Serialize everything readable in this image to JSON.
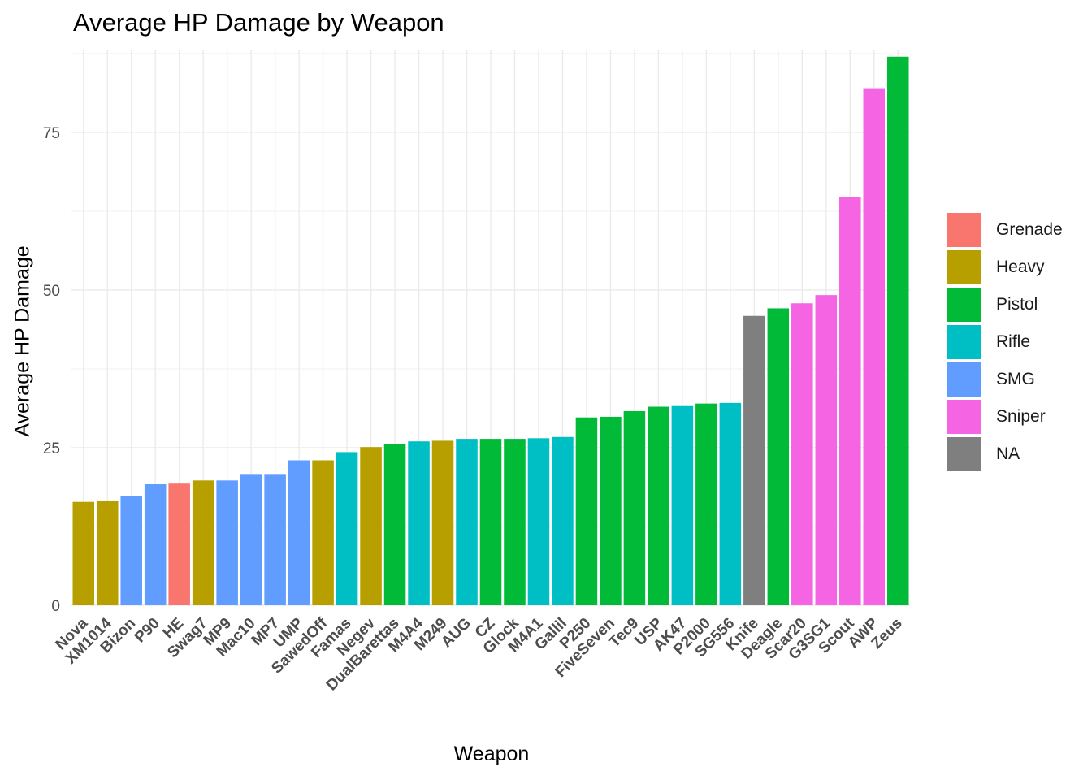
{
  "chart_data": {
    "type": "bar",
    "title": "Average HP Damage by Weapon",
    "xlabel": "Weapon",
    "ylabel": "Average HP Damage",
    "ylim": [
      0,
      88
    ],
    "yticks": [
      0,
      25,
      50,
      75
    ],
    "grid": true,
    "legend_position": "right",
    "categories": [
      "Nova",
      "XM1014",
      "Bizon",
      "P90",
      "HE",
      "Swag7",
      "MP9",
      "Mac10",
      "MP7",
      "UMP",
      "SawedOff",
      "Famas",
      "Negev",
      "DualBarettas",
      "M4A4",
      "M249",
      "AUG",
      "CZ",
      "Glock",
      "M4A1",
      "Gallil",
      "P250",
      "FiveSeven",
      "Tec9",
      "USP",
      "AK47",
      "P2000",
      "SG556",
      "Knife",
      "Deagle",
      "Scar20",
      "G3SG1",
      "Scout",
      "AWP",
      "Zeus"
    ],
    "values": [
      16.4,
      16.5,
      17.3,
      19.2,
      19.3,
      19.8,
      19.8,
      20.7,
      20.7,
      23.0,
      23.0,
      24.3,
      25.1,
      25.6,
      26.0,
      26.1,
      26.4,
      26.4,
      26.4,
      26.5,
      26.7,
      29.8,
      29.9,
      30.8,
      31.5,
      31.6,
      32.0,
      32.1,
      45.9,
      47.1,
      47.9,
      49.2,
      64.7,
      82.0,
      87.0
    ],
    "groups": [
      "Heavy",
      "Heavy",
      "SMG",
      "SMG",
      "Grenade",
      "Heavy",
      "SMG",
      "SMG",
      "SMG",
      "SMG",
      "Heavy",
      "Rifle",
      "Heavy",
      "Pistol",
      "Rifle",
      "Heavy",
      "Rifle",
      "Pistol",
      "Pistol",
      "Rifle",
      "Rifle",
      "Pistol",
      "Pistol",
      "Pistol",
      "Pistol",
      "Rifle",
      "Pistol",
      "Rifle",
      "NA",
      "Pistol",
      "Sniper",
      "Sniper",
      "Sniper",
      "Sniper",
      "Pistol"
    ],
    "legend": [
      {
        "name": "Grenade",
        "color": "#F8766D"
      },
      {
        "name": "Heavy",
        "color": "#B79F00"
      },
      {
        "name": "Pistol",
        "color": "#00BA38"
      },
      {
        "name": "Rifle",
        "color": "#00BFC4"
      },
      {
        "name": "SMG",
        "color": "#619CFF"
      },
      {
        "name": "Sniper",
        "color": "#F564E3"
      },
      {
        "name": "NA",
        "color": "#7F7F7F"
      }
    ]
  }
}
